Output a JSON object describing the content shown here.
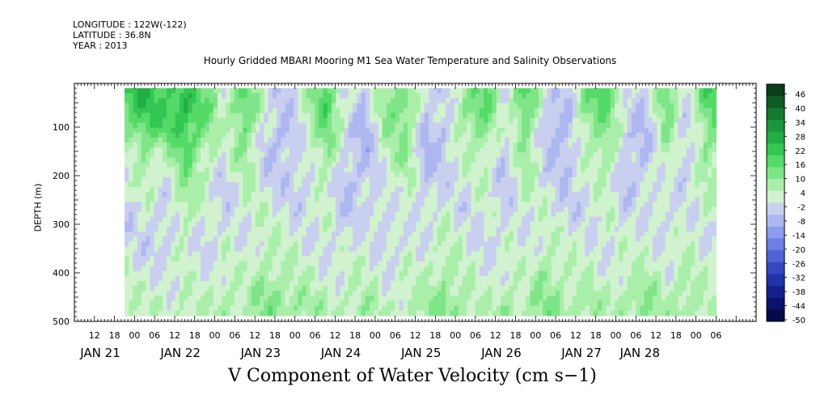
{
  "header": {
    "longitude": "LONGITUDE : 122W(-122)",
    "latitude": "LATITUDE : 36.8N",
    "year": "YEAR : 2013",
    "title": "Hourly Gridded MBARI Mooring M1 Sea Water Temperature and Salinity Observations"
  },
  "bottom_title": "V Component of Water Velocity (cm s−1)",
  "chart_data": {
    "type": "heatmap",
    "title": "Hourly Gridded MBARI Mooring M1 Sea Water Temperature and Salinity Observations",
    "xlabel": "",
    "ylabel": "DEPTH (m)",
    "ylim": [
      500,
      10
    ],
    "y_ticks": [
      100,
      200,
      300,
      400,
      500
    ],
    "y_data_range": [
      20,
      488
    ],
    "x_data_range_hours": [
      15,
      192
    ],
    "x_tick_hour_labels": [
      "12",
      "18",
      "00",
      "06",
      "12",
      "18",
      "00",
      "06",
      "12",
      "18",
      "00",
      "06",
      "12",
      "18",
      "00",
      "06",
      "12",
      "18",
      "00",
      "06",
      "12",
      "18",
      "00",
      "06",
      "12",
      "18",
      "00",
      "06",
      "12",
      "18",
      "00",
      "06"
    ],
    "x_day_labels": [
      "JAN 21",
      "JAN 22",
      "JAN 23",
      "JAN 24",
      "JAN 25",
      "JAN 26",
      "JAN 27",
      "JAN 28"
    ],
    "colorbar": {
      "labels": [
        "46",
        "40",
        "34",
        "28",
        "22",
        "16",
        "10",
        "4",
        "-2",
        "-8",
        "-14",
        "-20",
        "-26",
        "-32",
        "-38",
        "-44",
        "-50"
      ],
      "colors": [
        "#0a3d1a",
        "#0f5a25",
        "#147a30",
        "#19963b",
        "#22ad45",
        "#33c653",
        "#55da68",
        "#7fe588",
        "#a9efaa",
        "#d0f2ce",
        "#c9cfee",
        "#aeb8f0",
        "#8d9cee",
        "#6b7fe4",
        "#4f63d6",
        "#3548c2",
        "#2233a8",
        "#15218a",
        "#0b146a",
        "#050a4a"
      ]
    },
    "field": {
      "description": "V velocity (cm/s) by time (columns) and depth (rows)",
      "time_hours": [
        15,
        21,
        27,
        33,
        39,
        45,
        51,
        57,
        63,
        69,
        75,
        81,
        87,
        93,
        99,
        105,
        111,
        117,
        123,
        129,
        135,
        141,
        147,
        153,
        159,
        165,
        171,
        177,
        183,
        189
      ],
      "depth_m": [
        25,
        65,
        105,
        145,
        185,
        225,
        265,
        305,
        345,
        385,
        425,
        465
      ],
      "values": [
        [
          16,
          22,
          14,
          20,
          8,
          -4,
          10,
          -8,
          -12,
          -4,
          12,
          -6,
          -14,
          4,
          8,
          -10,
          -12,
          4,
          12,
          -8,
          16,
          -10,
          -14,
          8,
          14,
          -6,
          -12,
          10,
          -8,
          14
        ],
        [
          12,
          18,
          16,
          22,
          10,
          -2,
          14,
          -6,
          -14,
          -2,
          14,
          -4,
          -16,
          6,
          10,
          -12,
          -10,
          6,
          10,
          -6,
          12,
          -12,
          -16,
          6,
          10,
          -8,
          -14,
          8,
          -10,
          10
        ],
        [
          6,
          10,
          12,
          18,
          6,
          -6,
          10,
          -10,
          -16,
          -6,
          10,
          -8,
          -18,
          2,
          6,
          -14,
          -14,
          2,
          6,
          -10,
          8,
          -14,
          -18,
          2,
          6,
          -10,
          -16,
          4,
          -12,
          6
        ],
        [
          -4,
          6,
          -2,
          14,
          2,
          -8,
          6,
          -12,
          -14,
          -8,
          6,
          -10,
          -16,
          -2,
          4,
          -16,
          -12,
          -2,
          2,
          -12,
          4,
          -12,
          -16,
          -2,
          4,
          -12,
          -14,
          2,
          -14,
          4
        ],
        [
          -8,
          2,
          -6,
          8,
          -2,
          -10,
          2,
          -10,
          -12,
          -10,
          2,
          -12,
          -14,
          -6,
          2,
          -14,
          -10,
          -6,
          -2,
          -14,
          2,
          -10,
          -14,
          -6,
          2,
          -14,
          -12,
          -2,
          -12,
          2
        ],
        [
          -10,
          -2,
          -8,
          4,
          -4,
          -12,
          -2,
          -8,
          -10,
          -12,
          -2,
          -14,
          -12,
          -8,
          -2,
          -12,
          -8,
          -8,
          -4,
          -12,
          -2,
          -8,
          -12,
          -8,
          -2,
          -12,
          -10,
          -6,
          -10,
          -2
        ],
        [
          -12,
          -6,
          -10,
          2,
          -6,
          -10,
          -4,
          -6,
          -8,
          -10,
          -4,
          -12,
          -10,
          -10,
          -4,
          -10,
          -6,
          -10,
          -6,
          -10,
          -4,
          -6,
          -10,
          -10,
          -4,
          -10,
          -8,
          -8,
          -8,
          -4
        ],
        [
          -10,
          -8,
          -12,
          -2,
          -8,
          -8,
          -6,
          -4,
          -6,
          -8,
          -6,
          -10,
          -8,
          -12,
          -6,
          -8,
          -4,
          -8,
          -8,
          -8,
          -6,
          -4,
          -8,
          -8,
          -6,
          -8,
          -6,
          -10,
          -6,
          -6
        ],
        [
          -8,
          -10,
          -10,
          -4,
          -10,
          -6,
          -8,
          -2,
          -4,
          -6,
          -8,
          -8,
          -6,
          -10,
          -8,
          -6,
          -2,
          -6,
          -10,
          -6,
          -8,
          -2,
          -6,
          -6,
          -8,
          -6,
          -4,
          -8,
          -4,
          -8
        ],
        [
          -6,
          -8,
          -8,
          -6,
          -8,
          -4,
          -6,
          2,
          -2,
          -4,
          -6,
          -6,
          -4,
          -8,
          -6,
          -4,
          2,
          -4,
          -8,
          -4,
          -6,
          2,
          -4,
          -4,
          -6,
          -4,
          -2,
          -6,
          -2,
          -6
        ],
        [
          -4,
          -6,
          -6,
          -4,
          -6,
          -2,
          -4,
          4,
          2,
          -2,
          -4,
          -4,
          -2,
          -6,
          -4,
          -2,
          4,
          -2,
          -6,
          -2,
          -4,
          4,
          -2,
          -2,
          -4,
          -2,
          2,
          -4,
          2,
          -4
        ],
        [
          -2,
          -4,
          -4,
          -2,
          -4,
          2,
          -2,
          6,
          4,
          2,
          -2,
          -2,
          2,
          -4,
          -2,
          2,
          6,
          2,
          -4,
          2,
          -2,
          6,
          2,
          2,
          -2,
          2,
          4,
          -2,
          4,
          -2
        ]
      ]
    }
  }
}
